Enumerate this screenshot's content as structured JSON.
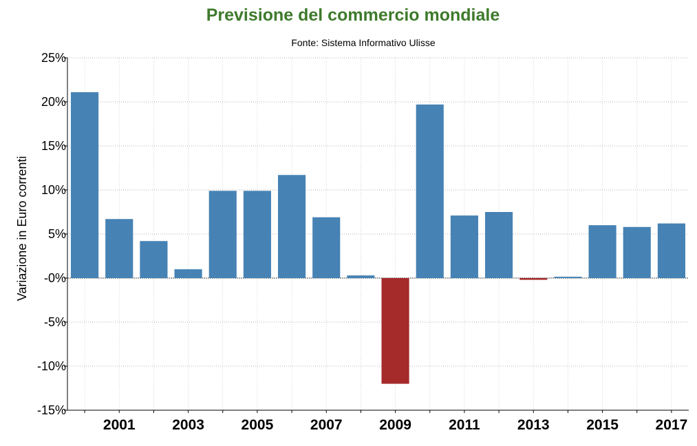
{
  "chart_data": {
    "type": "bar",
    "title": "Previsione del commercio mondiale",
    "subtitle": "Fonte: Sistema Informativo Ulisse",
    "ylabel": "Variazione in Euro correnti",
    "xlabel": "",
    "ylim": [
      -15,
      25
    ],
    "y_ticks": [
      25,
      20,
      15,
      10,
      5,
      0,
      -5,
      -10,
      -15
    ],
    "y_tick_labels": [
      "25%",
      "20%",
      "15%",
      "10%",
      "5%",
      "-0%",
      "-5%",
      "-10%",
      "-15%"
    ],
    "categories": [
      "2000",
      "2001",
      "2002",
      "2003",
      "2004",
      "2005",
      "2006",
      "2007",
      "2008",
      "2009",
      "2010",
      "2011",
      "2012",
      "2013",
      "2014",
      "2015",
      "2016",
      "2017"
    ],
    "x_tick_labels": [
      "",
      "2001",
      "",
      "2003",
      "",
      "2005",
      "",
      "2007",
      "",
      "2009",
      "",
      "2011",
      "",
      "2013",
      "",
      "2015",
      "",
      "2017"
    ],
    "values": [
      21.1,
      6.7,
      4.2,
      1.0,
      9.9,
      9.9,
      11.7,
      6.9,
      0.3,
      -12.0,
      19.7,
      7.1,
      7.5,
      -0.2,
      0.15,
      6.0,
      5.8,
      6.2
    ],
    "colors": {
      "positive": "#4682b4",
      "negative": "#a52a2a"
    },
    "grid": true,
    "legend": "none"
  }
}
